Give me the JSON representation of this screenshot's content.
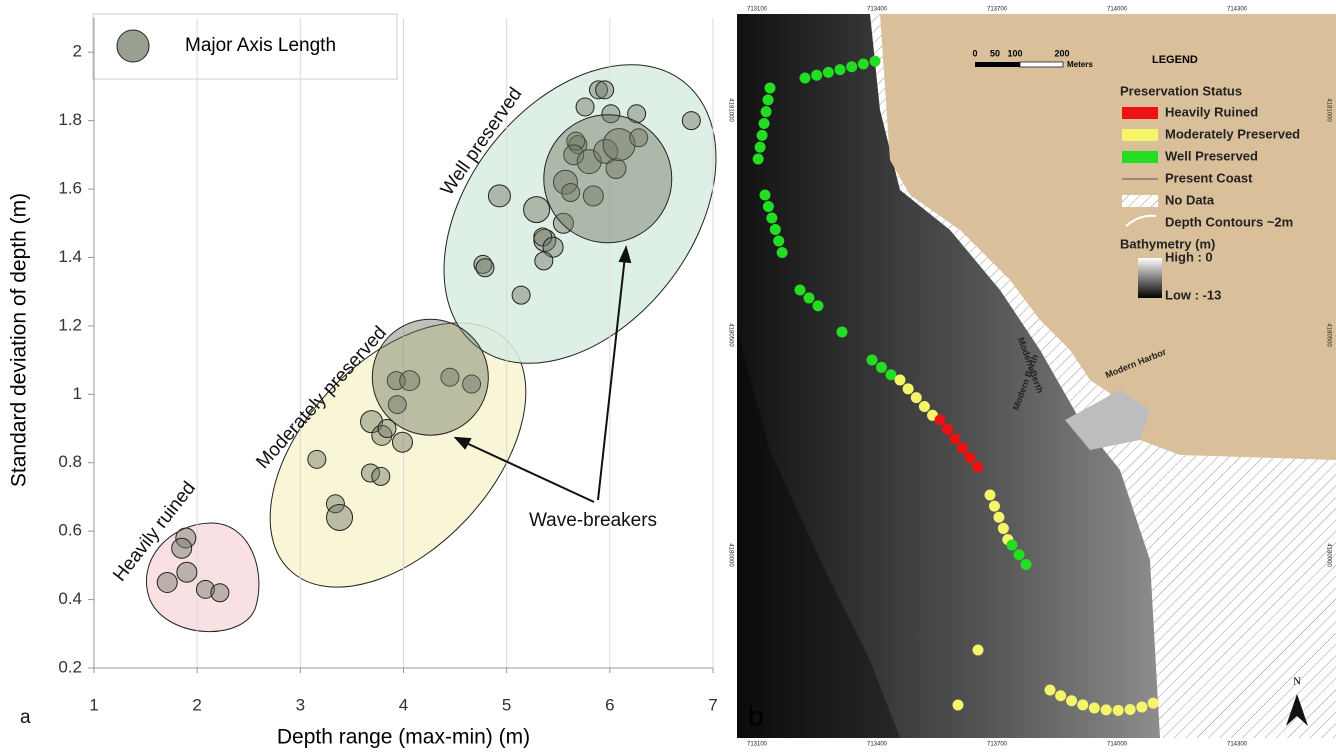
{
  "chart_data": {
    "type": "scatter",
    "xlabel": "Depth range (max-min) (m)",
    "ylabel": "Standard deviation of depth (m)",
    "xlim": [
      1,
      7
    ],
    "xticks": [
      1,
      2,
      3,
      4,
      5,
      6,
      7
    ],
    "ylim": [
      0.2,
      2.1
    ],
    "yticks": [
      0.2,
      0.4,
      0.6,
      0.8,
      1,
      1.2,
      1.4,
      1.6,
      1.8,
      2
    ],
    "xgrid": true,
    "annotations": [
      "Heavily ruined",
      "Moderately preserved",
      "Well preserved",
      "Wave-breakers",
      "a"
    ],
    "series": [
      {
        "name": "Major Axis Length",
        "color": "#6e7862",
        "x": [
          1.89,
          1.85,
          1.9,
          1.71,
          2.08,
          2.22,
          3.16,
          3.34,
          3.38,
          3.69,
          3.79,
          3.84,
          3.94,
          3.68,
          3.78,
          3.99,
          3.93,
          4.06,
          4.45,
          4.66,
          4.26,
          4.93,
          5.14,
          4.77,
          4.79,
          5.29,
          5.37,
          5.35,
          5.45,
          5.36,
          5.55,
          5.57,
          5.62,
          5.69,
          5.67,
          5.65,
          5.76,
          5.8,
          5.84,
          5.89,
          5.95,
          5.96,
          6.06,
          6.09,
          6.01,
          6.26,
          6.28,
          6.79,
          5.98
        ],
        "values": [
          0.58,
          0.55,
          0.48,
          0.45,
          0.43,
          0.42,
          0.81,
          0.68,
          0.64,
          0.92,
          0.88,
          0.9,
          0.97,
          0.77,
          0.76,
          0.86,
          1.04,
          1.04,
          1.05,
          1.03,
          1.05,
          1.58,
          1.29,
          1.38,
          1.37,
          1.54,
          1.45,
          1.46,
          1.43,
          1.39,
          1.5,
          1.62,
          1.59,
          1.73,
          1.74,
          1.7,
          1.84,
          1.68,
          1.58,
          1.89,
          1.89,
          1.71,
          1.66,
          1.73,
          1.82,
          1.82,
          1.75,
          1.8,
          1.63
        ],
        "sizes": [
          10,
          10,
          10,
          10,
          9,
          9,
          9,
          9,
          13,
          11,
          10,
          9,
          9,
          9,
          9,
          10,
          9,
          10,
          9,
          9,
          58,
          11,
          9,
          9,
          9,
          13,
          11,
          9,
          10,
          9,
          10,
          12,
          9,
          9,
          9,
          10,
          9,
          12,
          10,
          9,
          9,
          12,
          10,
          16,
          9,
          9,
          9,
          9,
          64
        ]
      }
    ]
  },
  "map": {
    "label": "b",
    "xticks": [
      "713100",
      "713400",
      "713700",
      "714000",
      "714300"
    ],
    "yticks": [
      "4181000",
      "4180500",
      "4180000"
    ],
    "scale": [
      "0",
      "50",
      "100",
      "200",
      "Meters"
    ],
    "north": "N",
    "places": [
      "Modern Berth",
      "Modern Berth",
      "Modern Harbor"
    ],
    "legend": {
      "title": "LEGEND",
      "status": "Preservation Status",
      "items": [
        "Heavily Ruined",
        "Moderately Preserved",
        "Well Preserved",
        "Present Coast",
        "No Data",
        "Depth Contours ~2m"
      ],
      "bathymetry": "Bathymetry (m)",
      "high": "High : 0",
      "low": "Low : -13"
    }
  }
}
